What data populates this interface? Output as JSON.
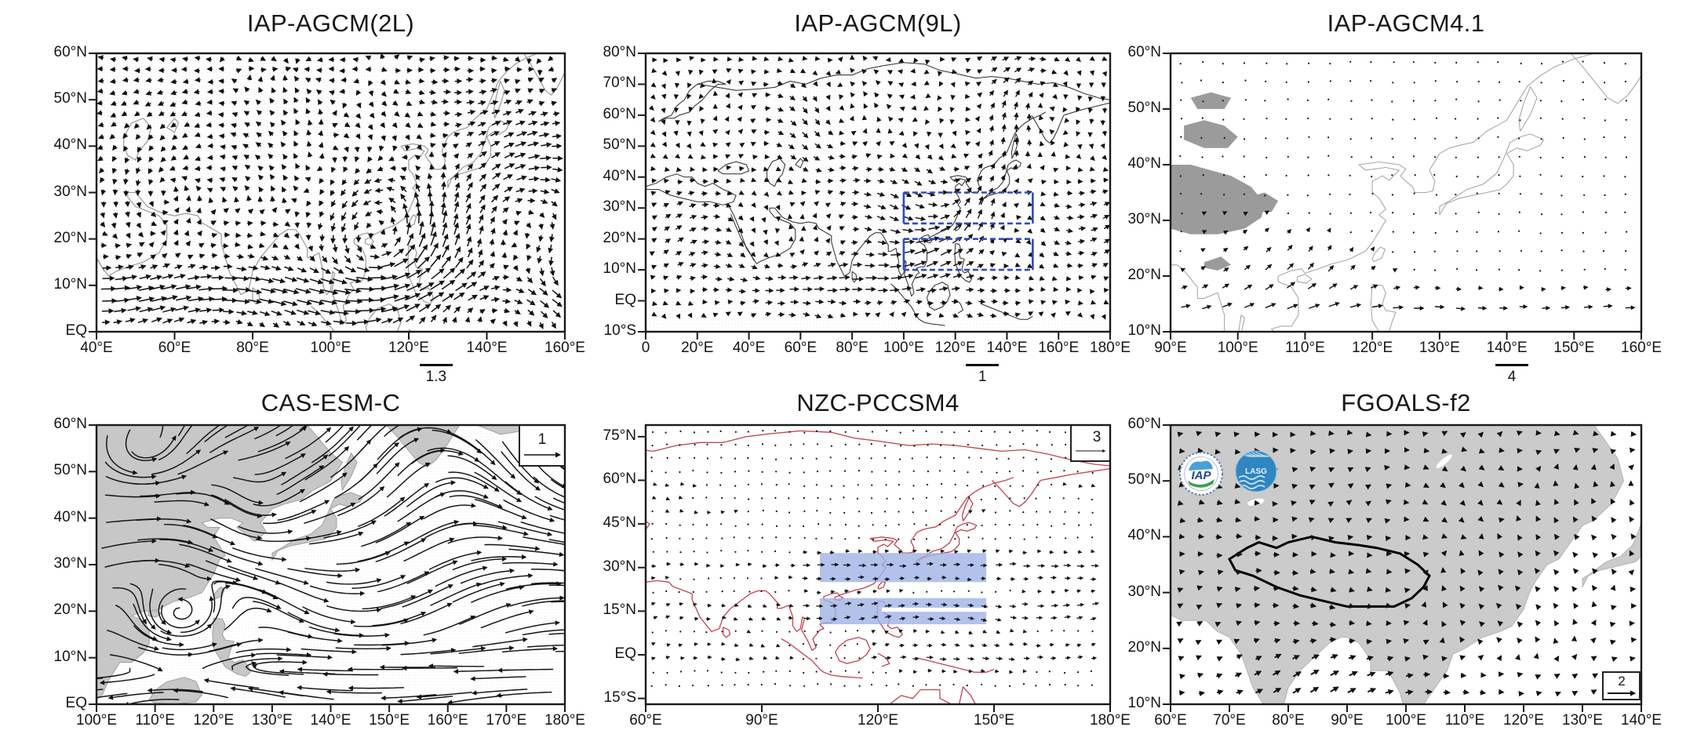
{
  "page": {
    "background": "#ffffff",
    "description": "Six-panel figure comparing summer low-level wind vector fields over Asia simulated by six IAP/CAS climate models"
  },
  "chart_data": {
    "type": "vector_field_map",
    "grid": "2 rows x 3 columns",
    "panels": [
      {
        "id": "iap-agcm-2l",
        "title": "IAP-AGCM(2L)",
        "x_axis": {
          "range": [
            40,
            160
          ],
          "values": [
            40,
            60,
            80,
            100,
            120,
            140,
            160
          ],
          "labels": [
            "40°E",
            "60°E",
            "80°E",
            "100°E",
            "120°E",
            "140°E",
            "160°E"
          ]
        },
        "y_axis": {
          "range": [
            0,
            60
          ],
          "values": [
            0,
            10,
            20,
            30,
            40,
            50,
            60
          ],
          "labels": [
            "EQ",
            "10°N",
            "20°N",
            "30°N",
            "40°N",
            "50°N",
            "60°N"
          ]
        },
        "reference_vector": "1.3",
        "reference_vector_position": "below-axis",
        "style": {
          "coastline_color": "#9a9a9a",
          "arrow_color": "#111111",
          "background": "stippled white"
        },
        "features": [
          "dense black wind arrows",
          "cyclonic circulation near 115°E 22°N",
          "strong westerlies 5°N–12°N"
        ]
      },
      {
        "id": "iap-agcm-9l",
        "title": "IAP-AGCM(9L)",
        "x_axis": {
          "range": [
            0,
            180
          ],
          "values": [
            0,
            20,
            40,
            60,
            80,
            100,
            120,
            140,
            160,
            180
          ],
          "labels": [
            "0",
            "20°E",
            "40°E",
            "60°E",
            "80°E",
            "100°E",
            "120°E",
            "140°E",
            "160°E",
            "180°E"
          ]
        },
        "y_axis": {
          "range": [
            -10,
            80
          ],
          "values": [
            -10,
            0,
            10,
            20,
            30,
            40,
            50,
            60,
            70,
            80
          ],
          "labels": [
            "10°S",
            "EQ",
            "10°N",
            "20°N",
            "30°N",
            "40°N",
            "50°N",
            "60°N",
            "70°N",
            "80°N"
          ]
        },
        "reference_vector": "1",
        "reference_vector_position": "below-axis",
        "highlight_boxes": [
          {
            "lon": [
              100,
              150
            ],
            "lat": [
              25,
              35
            ]
          },
          {
            "lon": [
              100,
              150
            ],
            "lat": [
              10,
              20
            ]
          }
        ],
        "highlight_box_color": "#2e4bc0",
        "style": {
          "coastline_color": "#2a2a2a",
          "arrow_color": "#111111",
          "background": "stippled white"
        },
        "features": [
          "two blue highlighted lon-lat boxes over East Asia and the western North Pacific"
        ]
      },
      {
        "id": "iap-agcm41",
        "title": "IAP-AGCM4.1",
        "x_axis": {
          "range": [
            90,
            160
          ],
          "values": [
            90,
            100,
            110,
            120,
            130,
            140,
            150,
            160
          ],
          "labels": [
            "90°E",
            "100°E",
            "110°E",
            "120°E",
            "130°E",
            "140°E",
            "150°E",
            "160°E"
          ]
        },
        "y_axis": {
          "range": [
            10,
            60
          ],
          "values": [
            10,
            20,
            30,
            40,
            50,
            60
          ],
          "labels": [
            "10°N",
            "20°N",
            "30°N",
            "40°N",
            "50°N",
            "60°N"
          ]
        },
        "reference_vector": "4",
        "reference_vector_position": "below-axis",
        "style": {
          "coastline_color": "#a8a8a8",
          "plateau_fill": "#9b9b9b",
          "arrow_color": "#111111",
          "background": "white"
        },
        "features": [
          "gray shaded Tibetan Plateau and mountain areas",
          "sparse short arrows",
          "southwesterly flow south of 25°N"
        ]
      },
      {
        "id": "cas-esm-c",
        "title": "CAS-ESM-C",
        "x_axis": {
          "range": [
            100,
            180
          ],
          "values": [
            100,
            110,
            120,
            130,
            140,
            150,
            160,
            170,
            180
          ],
          "labels": [
            "100°E",
            "110°E",
            "120°E",
            "130°E",
            "140°E",
            "150°E",
            "160°E",
            "170°E",
            "180°E"
          ]
        },
        "y_axis": {
          "range": [
            0,
            60
          ],
          "values": [
            0,
            10,
            20,
            30,
            40,
            50,
            60
          ],
          "labels": [
            "EQ",
            "10°N",
            "20°N",
            "30°N",
            "40°N",
            "50°N",
            "60°N"
          ]
        },
        "reference_vector": "1",
        "reference_vector_position": "box-top-right",
        "style": {
          "land_fill": "#c7c7c7",
          "arrow_color": "#111111",
          "background": "stippled white"
        },
        "features": [
          "streamline-style curved arrows",
          "closed cyclone near 113°E 18°N",
          "anticyclone near 160°E 45°N",
          "dense equatorial easterlies"
        ]
      },
      {
        "id": "nzc-pccsm4",
        "title": "NZC-PCCSM4",
        "x_axis": {
          "range": [
            60,
            180
          ],
          "values": [
            60,
            90,
            120,
            150,
            180
          ],
          "labels": [
            "60°E",
            "90°E",
            "120°E",
            "150°E",
            "180°E"
          ]
        },
        "y_axis": {
          "range": [
            -17,
            79
          ],
          "values": [
            -15,
            0,
            15,
            30,
            45,
            60,
            75
          ],
          "labels": [
            "15°S",
            "EQ",
            "15°N",
            "30°N",
            "45°N",
            "60°N",
            "75°N"
          ]
        },
        "reference_vector": "3",
        "reference_vector_position": "box-top-right",
        "highlight_bands": [
          {
            "lon": [
              105,
              148
            ],
            "lat": [
              25,
              35
            ]
          },
          {
            "lon": [
              105,
              148
            ],
            "lat": [
              10.5,
              19.5
            ]
          }
        ],
        "highlight_band_color": "#9fb3e6",
        "style": {
          "coastline_color": "#c04351",
          "arrow_color": "#222222",
          "background": "white"
        },
        "features": [
          "red coastlines",
          "two light-blue shaded lat-lon bands over East Asia and the western Pacific",
          "tiny grid arrows"
        ]
      },
      {
        "id": "fgoals-f2",
        "title": "FGOALS-f2",
        "x_axis": {
          "range": [
            60,
            140
          ],
          "values": [
            60,
            70,
            80,
            90,
            100,
            110,
            120,
            130,
            140
          ],
          "labels": [
            "60°E",
            "70°E",
            "80°E",
            "90°E",
            "100°E",
            "110°E",
            "120°E",
            "130°E",
            "140°E"
          ]
        },
        "y_axis": {
          "range": [
            10,
            60
          ],
          "values": [
            10,
            20,
            30,
            40,
            50,
            60
          ],
          "labels": [
            "10°N",
            "20°N",
            "30°N",
            "40°N",
            "50°N",
            "60°N"
          ]
        },
        "reference_vector": "2",
        "reference_vector_position": "box-bottom-right",
        "logos": [
          "IAP",
          "LASG"
        ],
        "style": {
          "land_fill": "#cbcbcb",
          "plateau_outline": "#000000",
          "arrow_color": "#111111",
          "background": "white"
        },
        "features": [
          "gray land with white ocean",
          "thick black Tibetan Plateau outline",
          "IAP and LASG institute logos top-left",
          "short thick arrows"
        ]
      }
    ]
  }
}
